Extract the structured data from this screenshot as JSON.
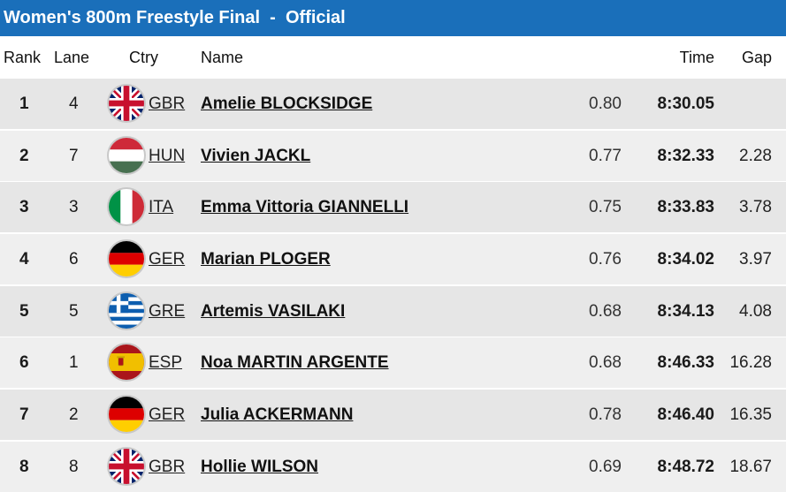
{
  "title": "Women's 800m Freestyle Final  -  Official",
  "headers": {
    "rank": "Rank",
    "lane": "Lane",
    "ctry": "Ctry",
    "name": "Name",
    "time": "Time",
    "gap": "Gap"
  },
  "rows": [
    {
      "rank": "1",
      "lane": "4",
      "ctry": "GBR",
      "flag_icon": "gbr-flag-icon",
      "name": "Amelie BLOCKSIDGE",
      "reaction": "0.80",
      "time": "8:30.05",
      "gap": ""
    },
    {
      "rank": "2",
      "lane": "7",
      "ctry": "HUN",
      "flag_icon": "hun-flag-icon",
      "name": "Vivien JACKL",
      "reaction": "0.77",
      "time": "8:32.33",
      "gap": "2.28"
    },
    {
      "rank": "3",
      "lane": "3",
      "ctry": "ITA",
      "flag_icon": "ita-flag-icon",
      "name": "Emma Vittoria GIANNELLI",
      "reaction": "0.75",
      "time": "8:33.83",
      "gap": "3.78"
    },
    {
      "rank": "4",
      "lane": "6",
      "ctry": "GER",
      "flag_icon": "ger-flag-icon",
      "name": "Marian PLOGER",
      "reaction": "0.76",
      "time": "8:34.02",
      "gap": "3.97"
    },
    {
      "rank": "5",
      "lane": "5",
      "ctry": "GRE",
      "flag_icon": "gre-flag-icon",
      "name": "Artemis VASILAKI",
      "reaction": "0.68",
      "time": "8:34.13",
      "gap": "4.08"
    },
    {
      "rank": "6",
      "lane": "1",
      "ctry": "ESP",
      "flag_icon": "esp-flag-icon",
      "name": "Noa MARTIN ARGENTE",
      "reaction": "0.68",
      "time": "8:46.33",
      "gap": "16.28"
    },
    {
      "rank": "7",
      "lane": "2",
      "ctry": "GER",
      "flag_icon": "ger-flag-icon",
      "name": "Julia ACKERMANN",
      "reaction": "0.78",
      "time": "8:46.40",
      "gap": "16.35"
    },
    {
      "rank": "8",
      "lane": "8",
      "ctry": "GBR",
      "flag_icon": "gbr-flag-icon",
      "name": "Hollie WILSON",
      "reaction": "0.69",
      "time": "8:48.72",
      "gap": "18.67"
    }
  ],
  "colors": {
    "title_bar": "#1a6fba",
    "row_odd": "#e6e6e6",
    "row_even": "#efefef"
  }
}
